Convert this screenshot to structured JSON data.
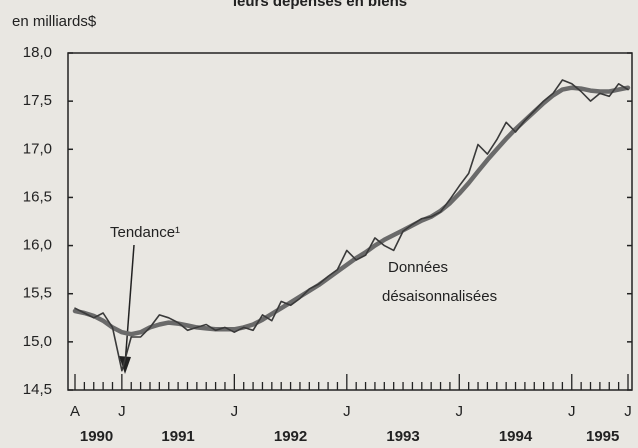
{
  "chart_data": {
    "type": "line",
    "title": "leurs dépenses en biens",
    "ylabel": "en milliards$",
    "categories": [
      "A",
      null,
      null,
      null,
      null,
      "J",
      null,
      null,
      null,
      null,
      null,
      null,
      null,
      null,
      null,
      null,
      null,
      "J",
      null,
      null,
      null,
      null,
      null,
      null,
      null,
      null,
      null,
      null,
      null,
      "J",
      null,
      null,
      null,
      null,
      null,
      null,
      null,
      null,
      null,
      null,
      null,
      "J",
      null,
      null,
      null,
      null,
      null,
      null,
      null,
      null,
      null,
      null,
      null,
      "J",
      null,
      null,
      null,
      null,
      null,
      "J"
    ],
    "years": [
      "1990",
      "1991",
      "1992",
      "1993",
      "1994",
      "1995"
    ],
    "series": [
      {
        "color": "#6a6a6a",
        "width": 4.5,
        "values": [
          15.32,
          15.3,
          15.27,
          15.22,
          15.15,
          15.1,
          15.08,
          15.1,
          15.15,
          15.18,
          15.2,
          15.19,
          15.17,
          15.15,
          15.14,
          15.13,
          15.13,
          15.13,
          15.15,
          15.18,
          15.23,
          15.29,
          15.35,
          15.41,
          15.47,
          15.53,
          15.59,
          15.66,
          15.73,
          15.8,
          15.87,
          15.93,
          16.0,
          16.06,
          16.11,
          16.16,
          16.21,
          16.26,
          16.3,
          16.36,
          16.44,
          16.54,
          16.65,
          16.77,
          16.89,
          17.0,
          17.11,
          17.21,
          17.3,
          17.39,
          17.48,
          17.56,
          17.62,
          17.64,
          17.63,
          17.61,
          17.6,
          17.6,
          17.62,
          17.64
        ]
      },
      {
        "color": "#3a3a3a",
        "width": 1.6,
        "values": [
          15.35,
          15.3,
          15.25,
          15.3,
          15.15,
          14.7,
          15.05,
          15.05,
          15.15,
          15.28,
          15.25,
          15.2,
          15.12,
          15.15,
          15.18,
          15.12,
          15.15,
          15.1,
          15.15,
          15.12,
          15.28,
          15.22,
          15.42,
          15.38,
          15.45,
          15.55,
          15.6,
          15.68,
          15.75,
          15.95,
          15.85,
          15.9,
          16.08,
          16.0,
          15.95,
          16.15,
          16.22,
          16.28,
          16.3,
          16.35,
          16.48,
          16.62,
          16.75,
          17.05,
          16.95,
          17.1,
          17.28,
          17.18,
          17.3,
          17.4,
          17.5,
          17.58,
          17.72,
          17.68,
          17.6,
          17.5,
          17.58,
          17.55,
          17.68,
          17.62
        ]
      }
    ],
    "annotations": [
      "Tendance¹",
      "Données",
      "désaisonnalisées"
    ],
    "ylim": [
      14.5,
      18.0
    ],
    "yticks": [
      {
        "value": 14.5,
        "label": "14,5"
      },
      {
        "value": 15,
        "label": "15,0"
      },
      {
        "value": 15.5,
        "label": "15,5"
      },
      {
        "value": 16,
        "label": "16,0"
      },
      {
        "value": 16.5,
        "label": "16,5"
      },
      {
        "value": 17,
        "label": "17,0"
      },
      {
        "value": 17.5,
        "label": "17,5"
      },
      {
        "value": 18,
        "label": "18,0"
      }
    ],
    "grid": false
  }
}
